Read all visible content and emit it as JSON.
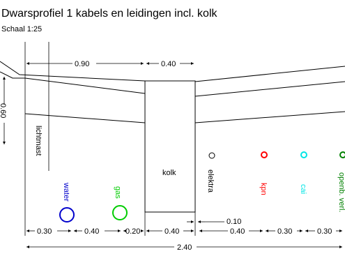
{
  "title": "Dwarsprofiel 1 kabels en leidingen incl. kolk",
  "scale": "Schaal 1:25",
  "colors": {
    "line": "#000000",
    "water": "#0000cc",
    "gas": "#00cc00",
    "kpn": "#ff0000",
    "cai": "#00e5e5",
    "openb": "#008000"
  },
  "dimensions": {
    "top": [
      "0.90",
      "0.40"
    ],
    "depth": "0.60",
    "small": "0.10",
    "bottom": [
      "0.30",
      "0.40",
      "0.20",
      "0.40",
      "0.40",
      "0.30",
      "0.30"
    ],
    "total": "2.40"
  },
  "labels": {
    "lichtmast": "lichtmast",
    "kolk": "kolk",
    "elektra": "elektra",
    "water": "water",
    "gas": "gas",
    "kpn": "kpn",
    "cai": "cai",
    "openb": "openb. verl."
  },
  "icons": {
    "arrow": "arrowhead-icon",
    "cable": "cable-circle-icon"
  }
}
